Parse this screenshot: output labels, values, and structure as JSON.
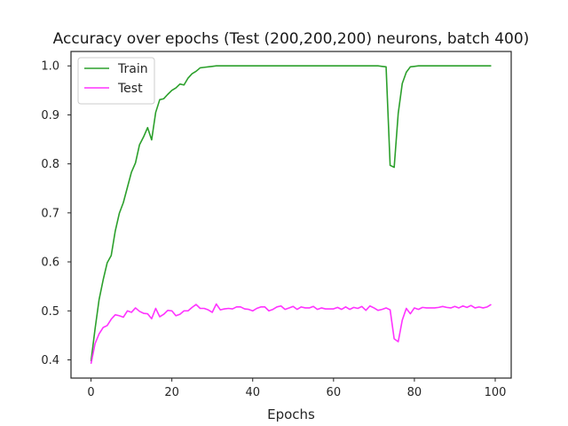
{
  "chart_data": {
    "type": "line",
    "title": "Accuracy over epochs (Test (200,200,200) neurons, batch 400)",
    "xlabel": "Epochs",
    "ylabel": "",
    "xlim": [
      -4.95,
      103.95
    ],
    "ylim": [
      0.3628,
      1.0294
    ],
    "xticks": [
      0,
      20,
      40,
      60,
      80,
      100
    ],
    "yticks": [
      0.4,
      0.5,
      0.6,
      0.7,
      0.8,
      0.9,
      1.0
    ],
    "grid": false,
    "legend_position": "top-left",
    "series": [
      {
        "name": "Train",
        "color": "#2ca02c",
        "x": [
          0,
          1,
          2,
          3,
          4,
          5,
          6,
          7,
          8,
          9,
          10,
          11,
          12,
          13,
          14,
          15,
          16,
          17,
          18,
          19,
          20,
          21,
          22,
          23,
          24,
          25,
          26,
          27,
          28,
          29,
          30,
          31,
          32,
          33,
          34,
          35,
          36,
          37,
          38,
          39,
          40,
          41,
          42,
          43,
          44,
          45,
          46,
          47,
          48,
          49,
          50,
          51,
          52,
          53,
          54,
          55,
          56,
          57,
          58,
          59,
          60,
          61,
          62,
          63,
          64,
          65,
          66,
          67,
          68,
          69,
          70,
          71,
          72,
          73,
          74,
          75,
          76,
          77,
          78,
          79,
          80,
          81,
          82,
          83,
          84,
          85,
          86,
          87,
          88,
          89,
          90,
          91,
          92,
          93,
          94,
          95,
          96,
          97,
          98,
          99
        ],
        "y": [
          0.397,
          0.463,
          0.523,
          0.563,
          0.598,
          0.613,
          0.663,
          0.699,
          0.721,
          0.752,
          0.783,
          0.802,
          0.839,
          0.855,
          0.874,
          0.849,
          0.905,
          0.931,
          0.933,
          0.942,
          0.95,
          0.955,
          0.963,
          0.961,
          0.975,
          0.984,
          0.989,
          0.996,
          0.997,
          0.998,
          0.999,
          1.0,
          1.0,
          1.0,
          1.0,
          1.0,
          1.0,
          1.0,
          1.0,
          1.0,
          1.0,
          1.0,
          1.0,
          1.0,
          1.0,
          1.0,
          1.0,
          1.0,
          1.0,
          1.0,
          1.0,
          1.0,
          1.0,
          1.0,
          1.0,
          1.0,
          1.0,
          1.0,
          1.0,
          1.0,
          1.0,
          1.0,
          1.0,
          1.0,
          1.0,
          1.0,
          1.0,
          1.0,
          1.0,
          1.0,
          1.0,
          1.0,
          0.999,
          0.998,
          0.797,
          0.793,
          0.903,
          0.964,
          0.987,
          0.998,
          0.999,
          1.0,
          1.0,
          1.0,
          1.0,
          1.0,
          1.0,
          1.0,
          1.0,
          1.0,
          1.0,
          1.0,
          1.0,
          1.0,
          1.0,
          1.0,
          1.0,
          1.0,
          1.0,
          1.0
        ]
      },
      {
        "name": "Test",
        "color": "#ff33ff",
        "x": [
          0,
          1,
          2,
          3,
          4,
          5,
          6,
          7,
          8,
          9,
          10,
          11,
          12,
          13,
          14,
          15,
          16,
          17,
          18,
          19,
          20,
          21,
          22,
          23,
          24,
          25,
          26,
          27,
          28,
          29,
          30,
          31,
          32,
          33,
          34,
          35,
          36,
          37,
          38,
          39,
          40,
          41,
          42,
          43,
          44,
          45,
          46,
          47,
          48,
          49,
          50,
          51,
          52,
          53,
          54,
          55,
          56,
          57,
          58,
          59,
          60,
          61,
          62,
          63,
          64,
          65,
          66,
          67,
          68,
          69,
          70,
          71,
          72,
          73,
          74,
          75,
          76,
          77,
          78,
          79,
          80,
          81,
          82,
          83,
          84,
          85,
          86,
          87,
          88,
          89,
          90,
          91,
          92,
          93,
          94,
          95,
          96,
          97,
          98,
          99
        ],
        "y": [
          0.392,
          0.433,
          0.453,
          0.466,
          0.47,
          0.483,
          0.492,
          0.49,
          0.487,
          0.5,
          0.497,
          0.506,
          0.499,
          0.495,
          0.494,
          0.484,
          0.505,
          0.488,
          0.493,
          0.501,
          0.5,
          0.49,
          0.493,
          0.5,
          0.5,
          0.507,
          0.513,
          0.505,
          0.505,
          0.502,
          0.497,
          0.514,
          0.502,
          0.504,
          0.505,
          0.504,
          0.508,
          0.508,
          0.504,
          0.503,
          0.5,
          0.505,
          0.508,
          0.508,
          0.5,
          0.503,
          0.508,
          0.51,
          0.503,
          0.506,
          0.509,
          0.503,
          0.508,
          0.506,
          0.506,
          0.509,
          0.503,
          0.506,
          0.504,
          0.504,
          0.504,
          0.507,
          0.503,
          0.508,
          0.503,
          0.507,
          0.505,
          0.509,
          0.501,
          0.51,
          0.506,
          0.501,
          0.503,
          0.506,
          0.502,
          0.443,
          0.437,
          0.481,
          0.505,
          0.494,
          0.506,
          0.503,
          0.507,
          0.506,
          0.506,
          0.506,
          0.507,
          0.509,
          0.507,
          0.506,
          0.509,
          0.506,
          0.51,
          0.507,
          0.511,
          0.506,
          0.508,
          0.506,
          0.508,
          0.513
        ]
      }
    ]
  }
}
